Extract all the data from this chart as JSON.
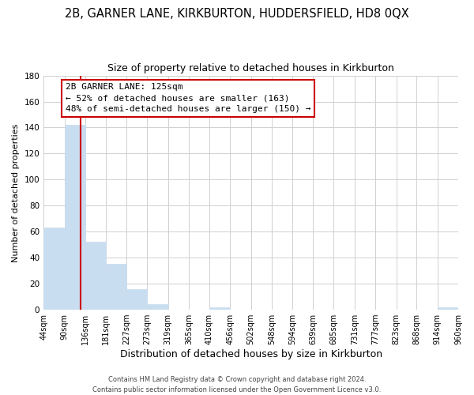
{
  "title": "2B, GARNER LANE, KIRKBURTON, HUDDERSFIELD, HD8 0QX",
  "subtitle": "Size of property relative to detached houses in Kirkburton",
  "xlabel": "Distribution of detached houses by size in Kirkburton",
  "ylabel": "Number of detached properties",
  "bar_edges": [
    44,
    90,
    136,
    181,
    227,
    273,
    319,
    365,
    410,
    456,
    502,
    548,
    594,
    639,
    685,
    731,
    777,
    823,
    868,
    914,
    960
  ],
  "bar_heights": [
    63,
    142,
    52,
    35,
    16,
    4,
    0,
    0,
    2,
    0,
    0,
    0,
    0,
    0,
    0,
    0,
    0,
    0,
    0,
    2
  ],
  "bar_color": "#c8ddef",
  "bar_edge_color": "#c8ddef",
  "property_line_x": 125,
  "property_line_color": "#cc0000",
  "ylim": [
    0,
    180
  ],
  "yticks": [
    0,
    20,
    40,
    60,
    80,
    100,
    120,
    140,
    160,
    180
  ],
  "tick_labels": [
    "44sqm",
    "90sqm",
    "136sqm",
    "181sqm",
    "227sqm",
    "273sqm",
    "319sqm",
    "365sqm",
    "410sqm",
    "456sqm",
    "502sqm",
    "548sqm",
    "594sqm",
    "639sqm",
    "685sqm",
    "731sqm",
    "777sqm",
    "823sqm",
    "868sqm",
    "914sqm",
    "960sqm"
  ],
  "annotation_title": "2B GARNER LANE: 125sqm",
  "annotation_line1": "← 52% of detached houses are smaller (163)",
  "annotation_line2": "48% of semi-detached houses are larger (150) →",
  "annotation_box_color": "#ffffff",
  "annotation_box_edge": "#cc0000",
  "footer1": "Contains HM Land Registry data © Crown copyright and database right 2024.",
  "footer2": "Contains public sector information licensed under the Open Government Licence v3.0.",
  "bg_color": "#ffffff",
  "grid_color": "#d0d0d0",
  "title_fontsize": 10.5,
  "subtitle_fontsize": 9.0,
  "xlabel_fontsize": 9.0,
  "ylabel_fontsize": 8.0,
  "tick_fontsize": 7.0,
  "ytick_fontsize": 7.5,
  "ann_fontsize": 8.0,
  "footer_fontsize": 6.0
}
